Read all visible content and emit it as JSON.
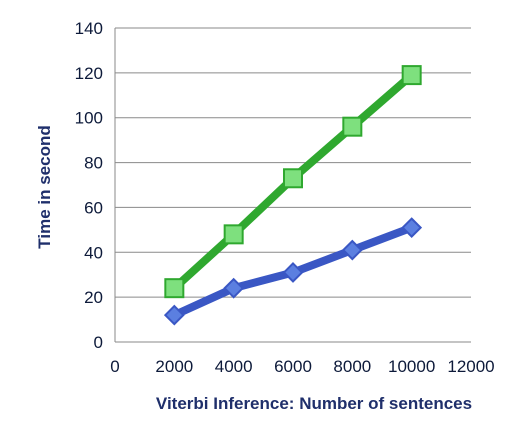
{
  "chart_data": {
    "type": "line",
    "title": "",
    "xlabel": "Viterbi Inference: Number of sentences",
    "ylabel": "Time in second",
    "xlim": [
      0,
      12000
    ],
    "ylim": [
      0,
      140
    ],
    "xticks": [
      0,
      2000,
      4000,
      6000,
      8000,
      10000,
      12000
    ],
    "yticks": [
      0,
      20,
      40,
      60,
      80,
      100,
      120,
      140
    ],
    "grid": {
      "horizontal": true,
      "vertical": false
    },
    "legend": "none",
    "series": [
      {
        "color": "#2fa82f",
        "fill": "#7ee07e",
        "marker": "square",
        "x": [
          2000,
          4000,
          6000,
          8000,
          10000
        ],
        "values": [
          24,
          48,
          73,
          96,
          119
        ]
      },
      {
        "color": "#3a57c4",
        "fill": "#5b7fe0",
        "marker": "diamond",
        "x": [
          2000,
          4000,
          6000,
          8000,
          10000
        ],
        "values": [
          12,
          24,
          31,
          41,
          51
        ]
      }
    ]
  }
}
